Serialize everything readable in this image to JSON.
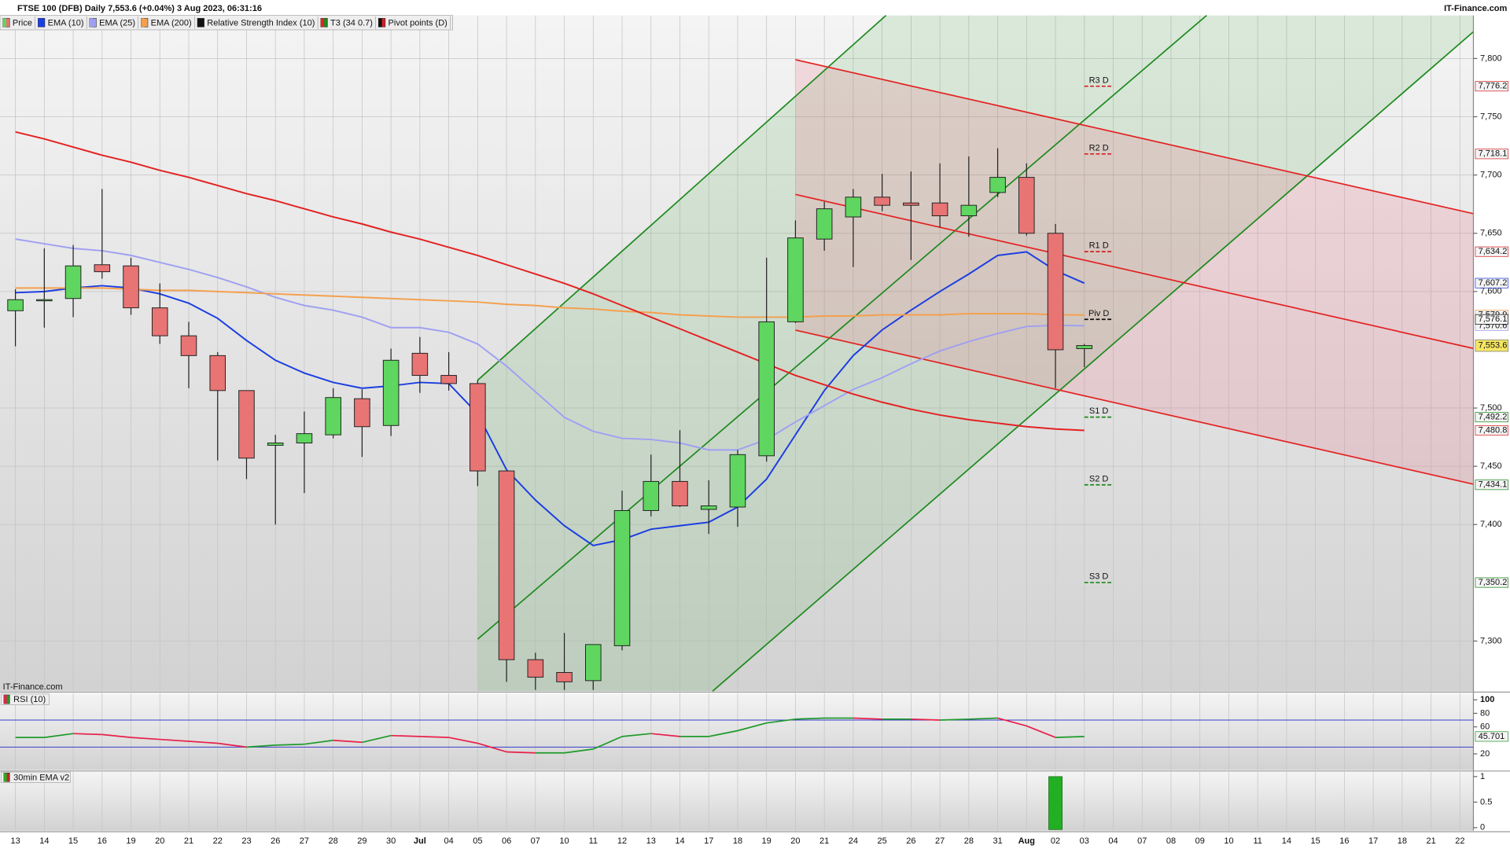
{
  "chart_data": [
    {
      "type": "candlestick",
      "title": "FTSE 100 (DFB) Daily 7,553.6 (+0.04%) 3 Aug 2023, 06:31:16",
      "source": "IT-Finance.com",
      "watermark": "IT-Finance.com",
      "categories": [
        "13",
        "14",
        "15",
        "16",
        "19",
        "20",
        "21",
        "22",
        "23",
        "26",
        "27",
        "28",
        "29",
        "30",
        "Jul",
        "04",
        "05",
        "06",
        "07",
        "10",
        "11",
        "12",
        "13",
        "14",
        "17",
        "18",
        "19",
        "20",
        "21",
        "24",
        "25",
        "26",
        "27",
        "28",
        "31",
        "Aug",
        "02",
        "03",
        "04",
        "07",
        "08",
        "09",
        "10",
        "11",
        "14",
        "15",
        "16",
        "17",
        "18",
        "21",
        "22"
      ],
      "ylim": [
        7257,
        7837
      ],
      "yticks": [
        {
          "value": 7300,
          "label": "7,300"
        },
        {
          "value": 7400,
          "label": "7,400"
        },
        {
          "value": 7450,
          "label": "7,450"
        },
        {
          "value": 7500,
          "label": "7,500"
        },
        {
          "value": 7600,
          "label": "7,600"
        },
        {
          "value": 7650,
          "label": "7,650"
        },
        {
          "value": 7700,
          "label": "7,700"
        },
        {
          "value": 7750,
          "label": "7,750"
        },
        {
          "value": 7800,
          "label": "7,800"
        }
      ],
      "grid": true,
      "series": [
        {
          "name": "Price",
          "type": "candlestick",
          "up_color": "#5fd65f",
          "down_color": "#e87474",
          "last_label": "7,553.6",
          "open": [
            7583.5,
            7593,
            7594,
            7623,
            7622,
            7586,
            7562,
            7545,
            7515,
            7468,
            7470,
            7477,
            7508,
            7485,
            7547,
            7528,
            7521,
            7446,
            7284,
            7273,
            7266,
            7296,
            7412,
            7437,
            7413,
            7415,
            7459,
            7574,
            7645,
            7664,
            7681,
            7676,
            7676,
            7665,
            7685,
            7698,
            7650,
            7551,
            null,
            null,
            null,
            null,
            null,
            null,
            null,
            null,
            null,
            null,
            null,
            null,
            null
          ],
          "high": [
            7602,
            7637,
            7640,
            7688,
            7629,
            7607,
            7574,
            7548,
            7515,
            7477,
            7497,
            7517,
            7516,
            7551,
            7561,
            7548,
            7524,
            7446,
            7290,
            7307,
            7297,
            7429,
            7460,
            7481,
            7438,
            7464,
            7629,
            7661,
            7677,
            7688,
            7701,
            7703,
            7710,
            7716,
            7723,
            7710,
            7658,
            7555,
            null,
            null,
            null,
            null,
            null,
            null,
            null,
            null,
            null,
            null,
            null,
            null,
            null
          ],
          "low": [
            7553,
            7569,
            7578,
            7611,
            7580,
            7555,
            7517,
            7455,
            7439,
            7400,
            7427,
            7474,
            7458,
            7476,
            7513,
            7515,
            7433,
            7265,
            7258,
            7258,
            7258,
            7292,
            7407,
            7415,
            7392,
            7398,
            7454,
            7573,
            7635,
            7621,
            7669,
            7627,
            7655,
            7647,
            7681,
            7648,
            7517,
            7535,
            null,
            null,
            null,
            null,
            null,
            null,
            null,
            null,
            null,
            null,
            null,
            null,
            null
          ],
          "close": [
            7593,
            7593,
            7622,
            7617,
            7586,
            7562,
            7545,
            7515,
            7457,
            7470,
            7478,
            7509,
            7484,
            7541,
            7528,
            7521,
            7446,
            7284,
            7269,
            7265,
            7297,
            7412,
            7437,
            7416,
            7416,
            7460,
            7574,
            7646,
            7671,
            7681,
            7674,
            7674,
            7665,
            7674,
            7698,
            7650,
            7550,
            7553.6,
            null,
            null,
            null,
            null,
            null,
            null,
            null,
            null,
            null,
            null,
            null,
            null,
            null
          ]
        },
        {
          "name": "EMA (10)",
          "type": "line",
          "color": "#1b3ee0",
          "last_label": "7,607.2",
          "values": [
            7599,
            7600,
            7603,
            7605,
            7603,
            7598,
            7590,
            7577,
            7558,
            7541,
            7530,
            7522,
            7517,
            7519,
            7522,
            7521,
            7495,
            7447,
            7421,
            7399,
            7382,
            7387,
            7396,
            7399,
            7402,
            7415,
            7439,
            7477,
            7515,
            7545,
            7567,
            7584,
            7600,
            7615,
            7631,
            7634,
            7618,
            7607.2,
            null,
            null,
            null,
            null,
            null,
            null,
            null,
            null,
            null,
            null,
            null,
            null,
            null
          ]
        },
        {
          "name": "EMA (25)",
          "type": "line",
          "color": "#a0a0f2",
          "last_label": "7,570.6",
          "values": [
            7645,
            7641,
            7637,
            7635,
            7631,
            7625,
            7619,
            7612,
            7604,
            7595,
            7588,
            7584,
            7578,
            7569,
            7569,
            7565,
            7555,
            7536,
            7514,
            7492,
            7480,
            7474,
            7473,
            7470,
            7464,
            7464,
            7473,
            7488,
            7502,
            7516,
            7526,
            7538,
            7549,
            7557,
            7564,
            7570,
            7571,
            7570.6,
            null,
            null,
            null,
            null,
            null,
            null,
            null,
            null,
            null,
            null,
            null,
            null,
            null
          ]
        },
        {
          "name": "EMA (200)",
          "type": "line",
          "color": "#f4a04e",
          "last_label": "7,579.9",
          "values": [
            7603,
            7603,
            7603,
            7603,
            7602,
            7601,
            7601,
            7600,
            7599,
            7598,
            7597,
            7596,
            7595,
            7594,
            7593,
            7592,
            7591,
            7589,
            7588,
            7586,
            7585,
            7583,
            7582,
            7580,
            7579,
            7578,
            7578,
            7578,
            7579,
            7579,
            7580,
            7580,
            7580,
            7581,
            7581,
            7581,
            7580,
            7579.9,
            null,
            null,
            null,
            null,
            null,
            null,
            null,
            null,
            null,
            null,
            null,
            null,
            null
          ]
        },
        {
          "name": "T3 (34 0.7)",
          "type": "line",
          "color": "#e32222",
          "last_label": "7,480.8",
          "values": [
            7737,
            7731,
            7724,
            7717,
            7711,
            7704,
            7698,
            7691,
            7684,
            7678,
            7671,
            7664,
            7658,
            7651,
            7645,
            7638,
            7631,
            7623,
            7615,
            7607,
            7598,
            7588,
            7578,
            7568,
            7558,
            7548,
            7538,
            7528,
            7520,
            7512,
            7505,
            7499,
            7494,
            7490,
            7487,
            7484,
            7482,
            7480.8,
            null,
            null,
            null,
            null,
            null,
            null,
            null,
            null,
            null,
            null,
            null,
            null,
            null
          ]
        }
      ],
      "pivots": {
        "name": "Pivot points (D)",
        "levels": [
          {
            "name": "R3 D",
            "value": 7776.2,
            "label": "7,776.2",
            "color": "#d42020"
          },
          {
            "name": "R2 D",
            "value": 7718.1,
            "label": "7,718.1",
            "color": "#d42020"
          },
          {
            "name": "R1 D",
            "value": 7634.2,
            "label": "7,634.2",
            "color": "#d42020"
          },
          {
            "name": "Piv D",
            "value": 7576.1,
            "label": "7,576.1",
            "color": "#111111"
          },
          {
            "name": "S1 D",
            "value": 7492.2,
            "label": "7,492.2",
            "color": "#1a8a1a"
          },
          {
            "name": "S2 D",
            "value": 7434.1,
            "label": "7,434.1",
            "color": "#1a8a1a"
          },
          {
            "name": "S3 D",
            "value": 7350.2,
            "label": "7,350.2",
            "color": "#1a8a1a"
          }
        ]
      }
    },
    {
      "type": "line",
      "title": "RSI (10)",
      "name": "Relative Strength Index (10)",
      "up_color": "#1f9a2a",
      "down_color": "#e8204a",
      "band_color": "#3b3bd0",
      "bands": [
        30,
        70
      ],
      "ylim": [
        -4,
        110
      ],
      "yticks": [
        20,
        60,
        80,
        100
      ],
      "values": [
        44.3,
        44.3,
        50,
        48.6,
        44.3,
        41.4,
        38.6,
        35.7,
        30,
        32.9,
        34.3,
        40,
        37.1,
        47.1,
        45.7,
        44.3,
        35.7,
        22.9,
        21.4,
        21.4,
        27.1,
        45.7,
        50,
        45.7,
        45.7,
        54.3,
        65.7,
        71.4,
        72.9,
        72.9,
        71.4,
        71.4,
        70,
        71.4,
        72.9,
        61.4,
        44.3,
        45.701,
        null,
        null,
        null,
        null,
        null,
        null,
        null,
        null,
        null,
        null,
        null,
        null,
        null
      ]
    },
    {
      "type": "bar",
      "title": "30min EMA v2",
      "color": "#22b022",
      "ylim": [
        -0.06,
        1.09
      ],
      "yticks": [
        0,
        0.5,
        1
      ],
      "values": [
        null,
        null,
        null,
        null,
        null,
        null,
        null,
        null,
        null,
        null,
        null,
        null,
        null,
        null,
        null,
        null,
        null,
        null,
        null,
        null,
        null,
        null,
        null,
        null,
        null,
        null,
        null,
        null,
        null,
        null,
        null,
        null,
        null,
        null,
        null,
        null,
        1,
        null,
        null,
        null,
        null,
        null,
        null,
        null,
        null,
        null,
        null,
        null,
        null,
        null,
        null
      ]
    }
  ]
}
